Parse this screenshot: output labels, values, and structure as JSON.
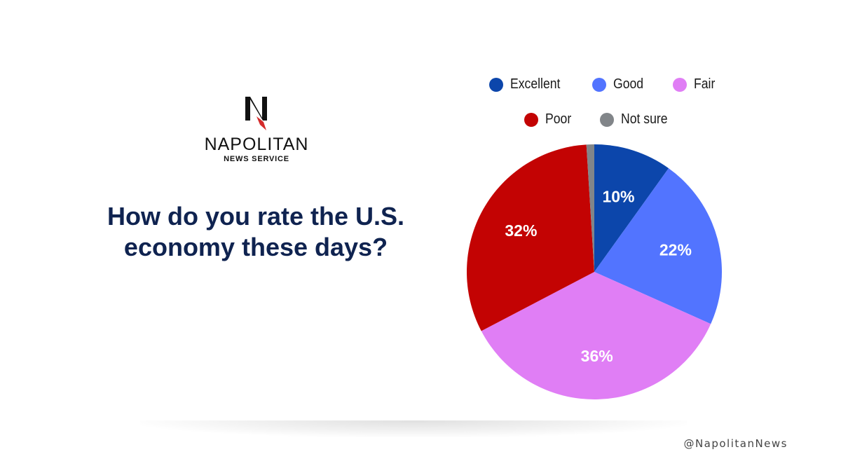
{
  "brand": {
    "name": "NAPOLITAN",
    "subtitle": "NEWS SERVICE",
    "mark_letter": "N",
    "colors": {
      "mark": "#111111",
      "accent": "#d42a2a"
    }
  },
  "question": "How do you rate the U.S. economy these days?",
  "handle": "@NapolitanNews",
  "legend": {
    "row1": [
      {
        "label": "Excellent",
        "color": "#0c46ab"
      },
      {
        "label": "Good",
        "color": "#5274ff"
      },
      {
        "label": "Fair",
        "color": "#e07ef5"
      }
    ],
    "row2": [
      {
        "label": "Poor",
        "color": "#c30303"
      },
      {
        "label": "Not sure",
        "color": "#818589"
      }
    ]
  },
  "chart_data": {
    "type": "pie",
    "title": "",
    "slices": [
      {
        "label": "Excellent",
        "value": 10,
        "display": "10%",
        "color": "#0c46ab"
      },
      {
        "label": "Good",
        "value": 22,
        "display": "22%",
        "color": "#5274ff"
      },
      {
        "label": "Fair",
        "value": 36,
        "display": "36%",
        "color": "#e07ef5"
      },
      {
        "label": "Poor",
        "value": 32,
        "display": "32%",
        "color": "#c30303"
      },
      {
        "label": "Not sure",
        "value": 1,
        "display": "",
        "color": "#818589"
      }
    ],
    "start_angle_deg": 0,
    "direction": "clockwise",
    "legend_position": "top",
    "data_label_color": "#ffffff"
  }
}
